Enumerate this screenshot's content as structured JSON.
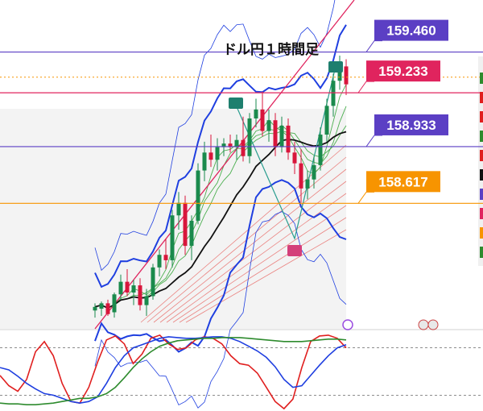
{
  "chart_data": {
    "type": "candlestick",
    "title": "ドル円１時間足",
    "price_range": [
      157.9,
      159.75
    ],
    "levels": [
      {
        "label": "159.460",
        "price": 159.46,
        "color": "#5b3fc4",
        "line": "solid"
      },
      {
        "label": "159.233",
        "price": 159.233,
        "color": "#e0245e",
        "line": "solid"
      },
      {
        "label": "158.933",
        "price": 158.933,
        "color": "#5b3fc4",
        "line": "solid"
      },
      {
        "label": "158.617",
        "price": 158.617,
        "color": "#f79400",
        "line": "solid"
      }
    ],
    "current_price": 159.32,
    "candles": [
      {
        "o": 158.02,
        "h": 158.06,
        "l": 157.98,
        "c": 158.04
      },
      {
        "o": 158.03,
        "h": 158.07,
        "l": 157.99,
        "c": 158.06
      },
      {
        "o": 158.06,
        "h": 158.08,
        "l": 157.99,
        "c": 158.0
      },
      {
        "o": 158.01,
        "h": 158.12,
        "l": 157.98,
        "c": 158.11
      },
      {
        "o": 158.11,
        "h": 158.22,
        "l": 158.08,
        "c": 158.18
      },
      {
        "o": 158.18,
        "h": 158.25,
        "l": 158.1,
        "c": 158.12
      },
      {
        "o": 158.12,
        "h": 158.19,
        "l": 158.05,
        "c": 158.16
      },
      {
        "o": 158.16,
        "h": 158.2,
        "l": 158.02,
        "c": 158.05
      },
      {
        "o": 158.05,
        "h": 158.14,
        "l": 157.99,
        "c": 158.1
      },
      {
        "o": 158.1,
        "h": 158.28,
        "l": 158.08,
        "c": 158.26
      },
      {
        "o": 158.26,
        "h": 158.36,
        "l": 158.21,
        "c": 158.33
      },
      {
        "o": 158.33,
        "h": 158.42,
        "l": 158.25,
        "c": 158.3
      },
      {
        "o": 158.3,
        "h": 158.58,
        "l": 158.26,
        "c": 158.55
      },
      {
        "o": 158.55,
        "h": 158.68,
        "l": 158.47,
        "c": 158.62
      },
      {
        "o": 158.62,
        "h": 158.66,
        "l": 158.33,
        "c": 158.38
      },
      {
        "o": 158.38,
        "h": 158.55,
        "l": 158.3,
        "c": 158.52
      },
      {
        "o": 158.52,
        "h": 158.84,
        "l": 158.5,
        "c": 158.8
      },
      {
        "o": 158.8,
        "h": 158.96,
        "l": 158.74,
        "c": 158.9
      },
      {
        "o": 158.9,
        "h": 159.0,
        "l": 158.82,
        "c": 158.86
      },
      {
        "o": 158.86,
        "h": 158.98,
        "l": 158.8,
        "c": 158.93
      },
      {
        "o": 158.93,
        "h": 158.98,
        "l": 158.88,
        "c": 158.95
      },
      {
        "o": 158.95,
        "h": 159.0,
        "l": 158.9,
        "c": 158.93
      },
      {
        "o": 158.93,
        "h": 159.0,
        "l": 158.86,
        "c": 158.97
      },
      {
        "o": 158.97,
        "h": 159.1,
        "l": 158.85,
        "c": 158.88
      },
      {
        "o": 158.88,
        "h": 159.12,
        "l": 158.84,
        "c": 159.09
      },
      {
        "o": 159.09,
        "h": 159.2,
        "l": 159.04,
        "c": 159.14
      },
      {
        "o": 159.14,
        "h": 159.24,
        "l": 158.99,
        "c": 159.02
      },
      {
        "o": 159.02,
        "h": 159.14,
        "l": 158.96,
        "c": 159.08
      },
      {
        "o": 159.08,
        "h": 159.12,
        "l": 158.88,
        "c": 158.93
      },
      {
        "o": 158.93,
        "h": 159.1,
        "l": 158.9,
        "c": 159.05
      },
      {
        "o": 159.05,
        "h": 159.09,
        "l": 158.86,
        "c": 158.9
      },
      {
        "o": 158.9,
        "h": 158.96,
        "l": 158.78,
        "c": 158.84
      },
      {
        "o": 158.84,
        "h": 158.92,
        "l": 158.62,
        "c": 158.7
      },
      {
        "o": 158.7,
        "h": 158.8,
        "l": 158.64,
        "c": 158.75
      },
      {
        "o": 158.75,
        "h": 158.88,
        "l": 158.7,
        "c": 158.83
      },
      {
        "o": 158.83,
        "h": 159.04,
        "l": 158.8,
        "c": 159.0
      },
      {
        "o": 159.0,
        "h": 159.2,
        "l": 158.96,
        "c": 159.16
      },
      {
        "o": 159.16,
        "h": 159.34,
        "l": 159.1,
        "c": 159.3
      },
      {
        "o": 159.3,
        "h": 159.44,
        "l": 159.25,
        "c": 159.38
      },
      {
        "o": 159.38,
        "h": 159.42,
        "l": 159.22,
        "c": 159.28
      }
    ],
    "oscillator": {
      "levels": [
        20,
        80
      ],
      "series": [
        {
          "name": "",
          "color": "#e01f1f",
          "values": [
            45,
            32,
            25,
            40,
            75,
            88,
            70,
            35,
            12,
            10,
            30,
            62,
            90,
            95,
            85,
            60,
            72,
            92,
            96,
            85,
            78,
            80,
            90,
            94,
            92,
            85,
            70,
            60,
            58,
            48,
            30,
            12,
            3,
            15,
            55,
            88,
            95,
            96,
            92,
            80
          ]
        },
        {
          "name": "",
          "color": "#1f3fe0",
          "values": [
            55,
            52,
            44,
            35,
            28,
            22,
            20,
            16,
            12,
            10,
            12,
            18,
            35,
            55,
            70,
            80,
            84,
            88,
            92,
            94,
            93,
            92,
            92,
            93,
            94,
            94,
            92,
            88,
            82,
            76,
            68,
            56,
            40,
            30,
            32,
            45,
            58,
            70,
            80,
            84
          ]
        },
        {
          "name": "",
          "color": "#2e8b2e",
          "values": [
            10,
            9,
            9,
            8,
            8,
            9,
            10,
            12,
            14,
            16,
            16,
            18,
            22,
            30,
            42,
            55,
            66,
            75,
            82,
            86,
            89,
            90,
            91,
            92,
            92,
            93,
            93,
            93,
            92,
            91,
            90,
            89,
            88,
            88,
            88,
            89,
            90,
            91,
            91,
            90
          ]
        }
      ]
    }
  },
  "colors": {
    "up": "#1a8a4c",
    "down": "#d8163b",
    "band": "#1f3fe0",
    "ma": "#111111",
    "ribbon_green": "#4caf50",
    "ribbon_red": "#e53935"
  }
}
